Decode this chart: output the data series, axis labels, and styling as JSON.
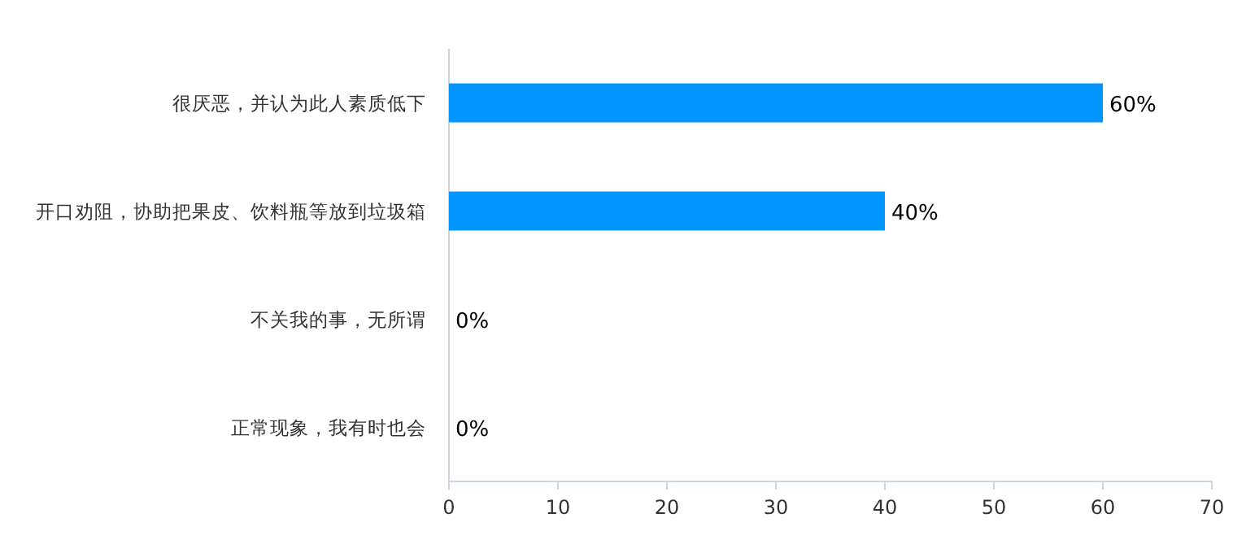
{
  "chart_data": {
    "type": "bar",
    "orientation": "horizontal",
    "categories": [
      "很厌恶，并认为此人素质低下",
      "开口劝阻，协助把果皮、饮料瓶等放到垃圾箱",
      "不关我的事，无所谓",
      "正常现象，我有时也会"
    ],
    "values": [
      60,
      40,
      0,
      0
    ],
    "value_labels": [
      "60%",
      "40%",
      "0%",
      "0%"
    ],
    "color": "#0095ff",
    "xlim": [
      0,
      70
    ],
    "xticks": [
      0,
      10,
      20,
      30,
      40,
      50,
      60,
      70
    ],
    "grid": false
  }
}
